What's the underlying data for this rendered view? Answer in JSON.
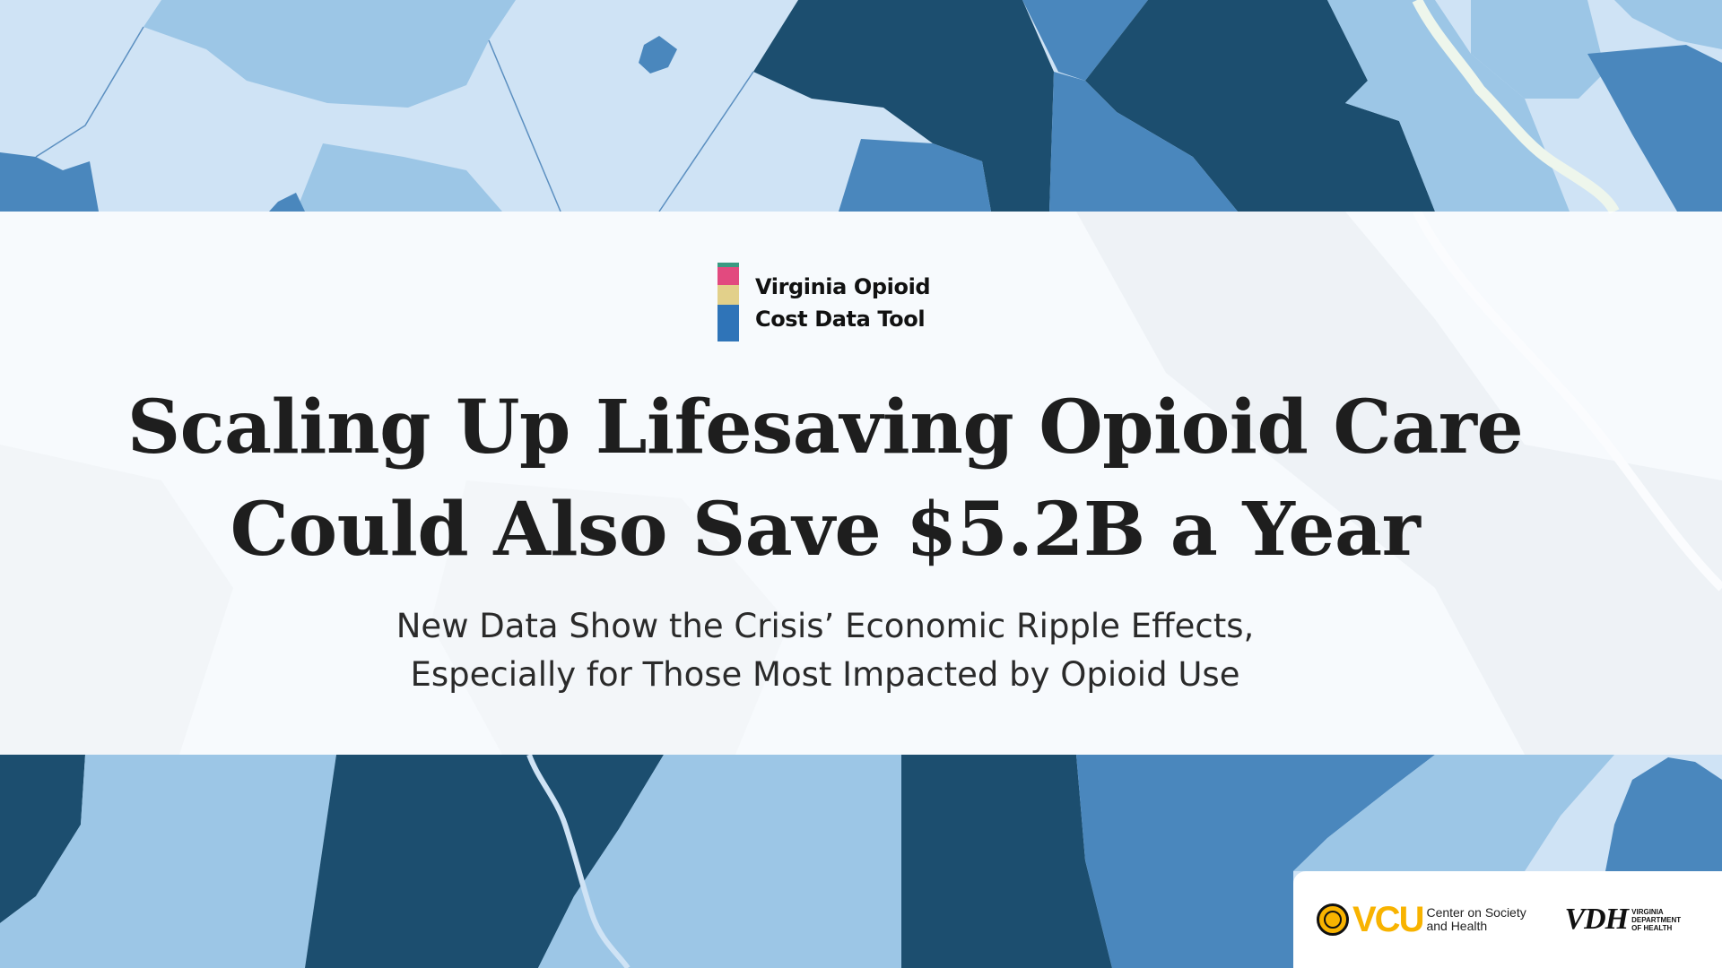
{
  "colors": {
    "map_lightest": "#cfe3f5",
    "map_light": "#9cc6e6",
    "map_mid": "#4a87bd",
    "map_dark": "#1c4e6f",
    "map_river": "#eef6ec",
    "banner_overlay": "#ffffff",
    "headline": "#1e1e1e",
    "subhead": "#2a2a2a",
    "brand_pink": "#e24a7f",
    "brand_yellow": "#e2d08a",
    "brand_blue": "#2f74b8",
    "brand_teal": "#3a9a82",
    "vcu_gold": "#f8b300"
  },
  "brand": {
    "line1": "Virginia Opioid",
    "line2": "Cost Data Tool"
  },
  "headline": {
    "line1": "Scaling Up Lifesaving Opioid Care",
    "line2": "Could Also Save $5.2B a Year"
  },
  "subhead": {
    "line1": "New Data Show the Crisis’ Economic Ripple Effects,",
    "line2": "Especially for Those Most Impacted by Opioid Use"
  },
  "logos": {
    "vcu": {
      "wordmark": "VCU",
      "subtitle_line1": "Center on Society",
      "subtitle_line2": "and Health"
    },
    "vdh": {
      "wordmark": "VDH",
      "subtitle_line1": "Virginia",
      "subtitle_line2": "Department",
      "subtitle_line3": "of Health"
    }
  }
}
